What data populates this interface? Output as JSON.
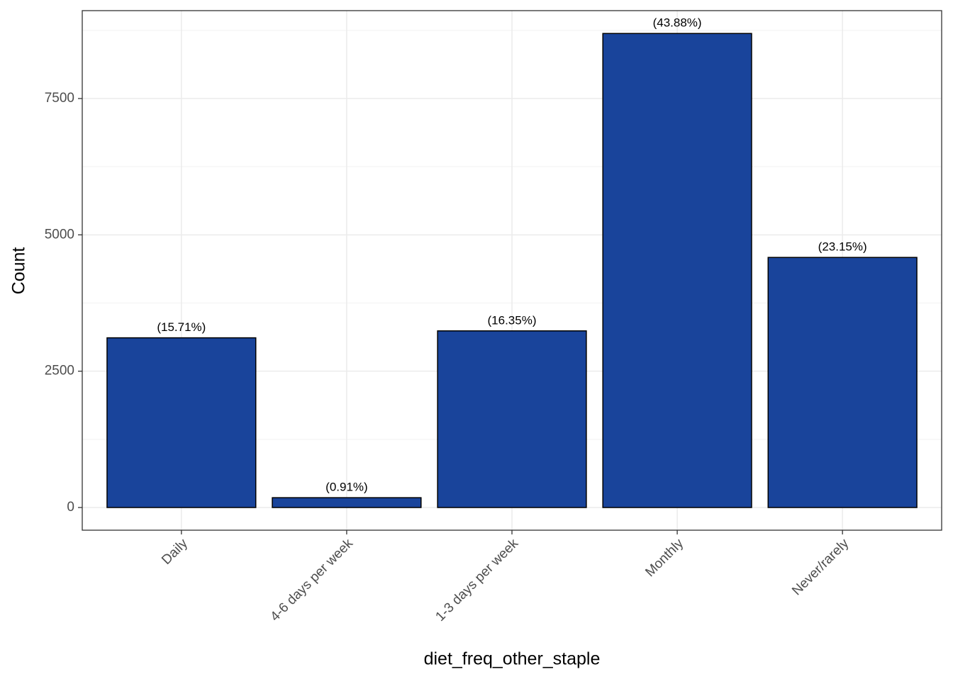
{
  "chart_data": {
    "type": "bar",
    "x_label": "diet_freq_other_staple",
    "y_label": "Count",
    "categories": [
      "Daily",
      "4-6 days per week",
      "1-3 days per week",
      "Monthly",
      "Never/rarely"
    ],
    "values": [
      3112,
      180,
      3239,
      8693,
      4586
    ],
    "annotations": [
      "(15.71%)",
      "(0.91%)",
      "(16.35%)",
      "(43.88%)",
      "(23.15%)"
    ],
    "color": "#19449b",
    "ylim": [
      -416,
      9112
    ],
    "yticks": [
      0,
      2500,
      5000,
      7500
    ],
    "minor_grid": [
      1250,
      3750,
      6250,
      8750
    ],
    "grid": true
  }
}
